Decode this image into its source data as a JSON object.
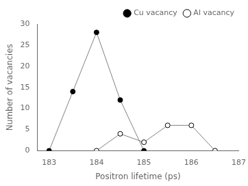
{
  "chart_data": {
    "type": "line",
    "xlabel": "Positron lifetime (ps)",
    "ylabel": "Number of vacancies",
    "series": [
      {
        "name": "Cu vacancy",
        "color": "#808080",
        "marker": "circle",
        "x": [
          183,
          183.5,
          184,
          184.5,
          185
        ],
        "values": [
          0,
          14,
          28,
          12,
          0
        ]
      },
      {
        "name": "Al vacancy",
        "color": "#808080",
        "marker": "open_circle",
        "x": [
          184,
          184.5,
          185,
          185.5,
          186,
          186.5
        ],
        "values": [
          0,
          4,
          2,
          6,
          6,
          0
        ]
      }
    ],
    "xlim": [
      182.75,
      187.0
    ],
    "ylim": [
      0,
      30
    ],
    "xticks": [
      183,
      184,
      185,
      186,
      187
    ],
    "yticks": [
      0,
      5,
      10,
      15,
      20,
      25,
      30
    ],
    "grid": false,
    "legend": "upper right"
  }
}
